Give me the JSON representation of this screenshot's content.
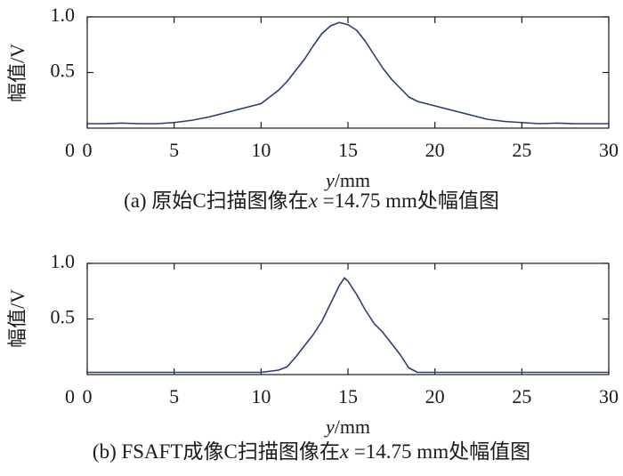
{
  "chart_data": [
    {
      "type": "line",
      "xlabel_var": "y",
      "xlabel_unit": "/mm",
      "ylabel": "幅值/V",
      "xlim": [
        0,
        30
      ],
      "ylim": [
        0,
        1.0
      ],
      "xticks": [
        0,
        5,
        10,
        15,
        20,
        25,
        30
      ],
      "yticks": [
        {
          "value": 0,
          "label": "0"
        },
        {
          "value": 0.5,
          "label": "0.5"
        },
        {
          "value": 1.0,
          "label": "1.0"
        }
      ],
      "caption": {
        "prefix": "(a) 原始C扫描图像在",
        "var": "x",
        "suffix": " =14.75 mm处幅值图"
      },
      "line_color": "#2b3a7a",
      "series": [
        {
          "x": [
            0,
            1,
            2,
            3,
            4,
            5,
            6,
            7,
            8,
            9,
            10,
            11,
            11.5,
            12,
            12.5,
            13,
            13.5,
            14,
            14.5,
            15,
            15.5,
            16,
            16.5,
            17,
            17.5,
            18,
            18.5,
            19,
            20,
            21,
            22,
            23,
            24,
            25,
            26,
            27,
            28,
            29,
            30
          ],
          "y": [
            0.04,
            0.04,
            0.045,
            0.04,
            0.04,
            0.05,
            0.07,
            0.1,
            0.14,
            0.18,
            0.22,
            0.34,
            0.42,
            0.52,
            0.62,
            0.74,
            0.85,
            0.92,
            0.95,
            0.93,
            0.88,
            0.78,
            0.66,
            0.54,
            0.44,
            0.36,
            0.28,
            0.24,
            0.2,
            0.16,
            0.12,
            0.08,
            0.06,
            0.05,
            0.04,
            0.045,
            0.04,
            0.04,
            0.04
          ]
        }
      ]
    },
    {
      "type": "line",
      "xlabel_var": "y",
      "xlabel_unit": "/mm",
      "ylabel": "幅值/V",
      "xlim": [
        0,
        30
      ],
      "ylim": [
        0,
        1.0
      ],
      "xticks": [
        0,
        5,
        10,
        15,
        20,
        25,
        30
      ],
      "yticks": [
        {
          "value": 0,
          "label": "0"
        },
        {
          "value": 0.5,
          "label": "0.5"
        },
        {
          "value": 1.0,
          "label": "1.0"
        }
      ],
      "caption": {
        "prefix": "(b) FSAFT成像C扫描图像在",
        "var": "x",
        "suffix": " =14.75 mm处幅值图"
      },
      "line_color": "#2b3a7a",
      "series": [
        {
          "x": [
            0,
            5,
            10,
            10.5,
            11,
            11.5,
            12,
            12.5,
            13,
            13.5,
            14,
            14.5,
            14.8,
            15,
            15.5,
            16,
            16.5,
            17,
            17.5,
            18,
            18.5,
            19,
            20,
            25,
            30
          ],
          "y": [
            0.02,
            0.02,
            0.02,
            0.03,
            0.04,
            0.07,
            0.16,
            0.26,
            0.36,
            0.48,
            0.64,
            0.8,
            0.87,
            0.84,
            0.72,
            0.58,
            0.46,
            0.38,
            0.28,
            0.18,
            0.06,
            0.02,
            0.02,
            0.02,
            0.02
          ]
        }
      ]
    }
  ]
}
